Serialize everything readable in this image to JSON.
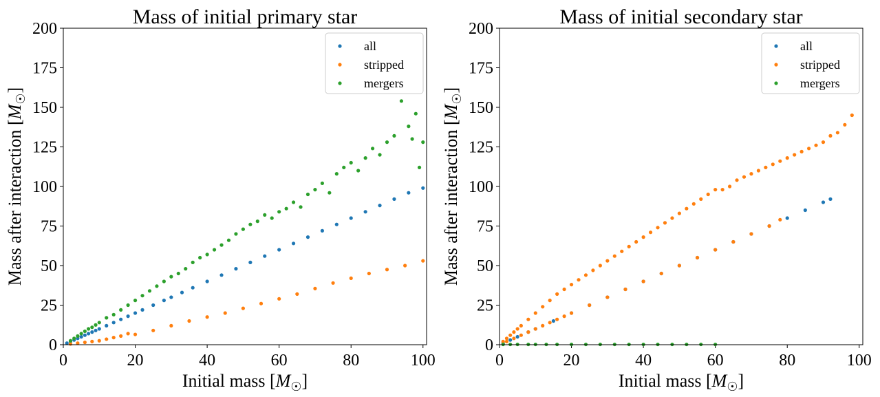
{
  "chart_data": [
    {
      "type": "scatter",
      "title": "Mass of initial primary star",
      "xlabel": "Initial mass [M☉]",
      "ylabel": "Mass after interaction [M☉]",
      "xlim": [
        0,
        101
      ],
      "ylim": [
        0,
        200
      ],
      "xticks": [
        "0",
        "20",
        "40",
        "60",
        "80",
        "100"
      ],
      "yticks": [
        "0",
        "25",
        "50",
        "75",
        "100",
        "125",
        "150",
        "175",
        "200"
      ],
      "grid": false,
      "legend": "top-right",
      "series": [
        {
          "name": "all",
          "color": "#1f77b4",
          "x": [
            1,
            2,
            3,
            4,
            5,
            6,
            7,
            8,
            9,
            10,
            12,
            14,
            16,
            18,
            20,
            22,
            25,
            28,
            30,
            33,
            36,
            40,
            44,
            48,
            52,
            56,
            60,
            64,
            68,
            72,
            76,
            80,
            84,
            88,
            92,
            96,
            100
          ],
          "y": [
            1,
            2,
            3,
            4,
            5,
            6,
            7,
            8,
            9,
            10,
            12,
            14,
            16,
            18,
            20,
            22,
            25,
            28,
            30,
            33,
            36,
            40,
            44,
            48,
            52,
            56,
            60,
            64,
            68,
            72,
            76,
            80,
            84,
            88,
            92,
            96,
            99
          ]
        },
        {
          "name": "stripped",
          "color": "#ff7f0e",
          "x": [
            2,
            4,
            6,
            8,
            10,
            12,
            14,
            16,
            18,
            20,
            25,
            30,
            35,
            40,
            45,
            50,
            55,
            60,
            65,
            70,
            75,
            80,
            85,
            90,
            95,
            100
          ],
          "y": [
            0.5,
            1,
            1.5,
            2,
            2.5,
            3.5,
            4.5,
            5.5,
            7,
            6.5,
            9,
            12,
            15,
            17.5,
            20,
            23,
            26,
            29,
            32,
            35.5,
            39,
            42,
            45,
            47.5,
            50,
            53
          ]
        },
        {
          "name": "mergers",
          "color": "#2ca02c",
          "x": [
            2,
            3,
            4,
            5,
            6,
            7,
            8,
            9,
            10,
            12,
            14,
            16,
            18,
            20,
            22,
            24,
            26,
            28,
            30,
            32,
            34,
            36,
            38,
            40,
            42,
            44,
            46,
            48,
            50,
            52,
            54,
            56,
            58,
            60,
            62,
            64,
            66,
            68,
            70,
            72,
            74,
            76,
            78,
            80,
            82,
            84,
            86,
            88,
            90,
            92,
            94,
            96,
            97,
            98,
            99,
            100
          ],
          "y": [
            2.5,
            4,
            5.5,
            7,
            8.5,
            10,
            11,
            12.5,
            14,
            17,
            19,
            22,
            25,
            28,
            31,
            34,
            37,
            40,
            43,
            45,
            48,
            52,
            55,
            57,
            60,
            63,
            66,
            70,
            73,
            76,
            78,
            82,
            80,
            84,
            86,
            90,
            87,
            95,
            98,
            102,
            96,
            108,
            112,
            115,
            110,
            118,
            124,
            120,
            128,
            132,
            154,
            138,
            130,
            146,
            112,
            128
          ]
        }
      ]
    },
    {
      "type": "scatter",
      "title": "Mass of initial secondary star",
      "xlabel": "Initial mass [M☉]",
      "ylabel": "Mass after interaction [M☉]",
      "xlim": [
        0,
        101
      ],
      "ylim": [
        0,
        200
      ],
      "xticks": [
        "0",
        "20",
        "40",
        "60",
        "80",
        "100"
      ],
      "yticks": [
        "0",
        "25",
        "50",
        "75",
        "100",
        "125",
        "150",
        "175",
        "200"
      ],
      "grid": false,
      "legend": "top-right",
      "series": [
        {
          "name": "all",
          "color": "#1f77b4",
          "x": [
            1,
            3,
            5,
            8,
            10,
            15,
            20,
            25,
            30,
            35,
            40,
            45,
            50,
            55,
            60,
            65,
            70,
            75,
            80,
            85,
            90,
            92
          ],
          "y": [
            1,
            3,
            5,
            8,
            10,
            15,
            20,
            25,
            30,
            35,
            40,
            45,
            50,
            55,
            60,
            65,
            70,
            75,
            80,
            85,
            90,
            92
          ]
        },
        {
          "name": "stripped",
          "color": "#ff7f0e",
          "x": [
            1,
            2,
            3,
            4,
            5,
            6,
            8,
            10,
            12,
            14,
            16,
            18,
            20,
            22,
            24,
            26,
            28,
            30,
            32,
            34,
            36,
            38,
            40,
            42,
            44,
            46,
            48,
            50,
            52,
            54,
            56,
            58,
            60,
            62,
            64,
            66,
            68,
            70,
            72,
            74,
            76,
            78,
            80,
            82,
            84,
            86,
            88,
            90,
            92,
            94,
            96,
            98,
            2,
            4,
            6,
            8,
            10,
            12,
            14,
            16,
            18,
            20,
            25,
            30,
            35,
            40,
            45,
            50,
            55,
            60,
            65,
            70,
            75,
            78
          ],
          "y": [
            2,
            4,
            6,
            8,
            10,
            12,
            16,
            20,
            24,
            28,
            32,
            35,
            38,
            41,
            44,
            47,
            50,
            53,
            56,
            59,
            62,
            65,
            68,
            71,
            74,
            77,
            80,
            83,
            86,
            89,
            92,
            95,
            98,
            98,
            100,
            104,
            106,
            108,
            110,
            112,
            114,
            116,
            118,
            120,
            122,
            124,
            126,
            128,
            132,
            134,
            139,
            145,
            2,
            4,
            6,
            8,
            10,
            12,
            14,
            16,
            18,
            20,
            25,
            30,
            35,
            40,
            45,
            50,
            55,
            60,
            65,
            70,
            75,
            79
          ]
        },
        {
          "name": "mergers",
          "color": "#2ca02c",
          "x": [
            1,
            3,
            5,
            8,
            10,
            13,
            16,
            20,
            24,
            28,
            32,
            36,
            40,
            44,
            48,
            52,
            56,
            60
          ],
          "y": [
            0.2,
            0.2,
            0.2,
            0.2,
            0.2,
            0.2,
            0.2,
            0.2,
            0.2,
            0.2,
            0.2,
            0.2,
            0.2,
            0.2,
            0.2,
            0.2,
            0.2,
            0.2
          ]
        }
      ]
    }
  ]
}
